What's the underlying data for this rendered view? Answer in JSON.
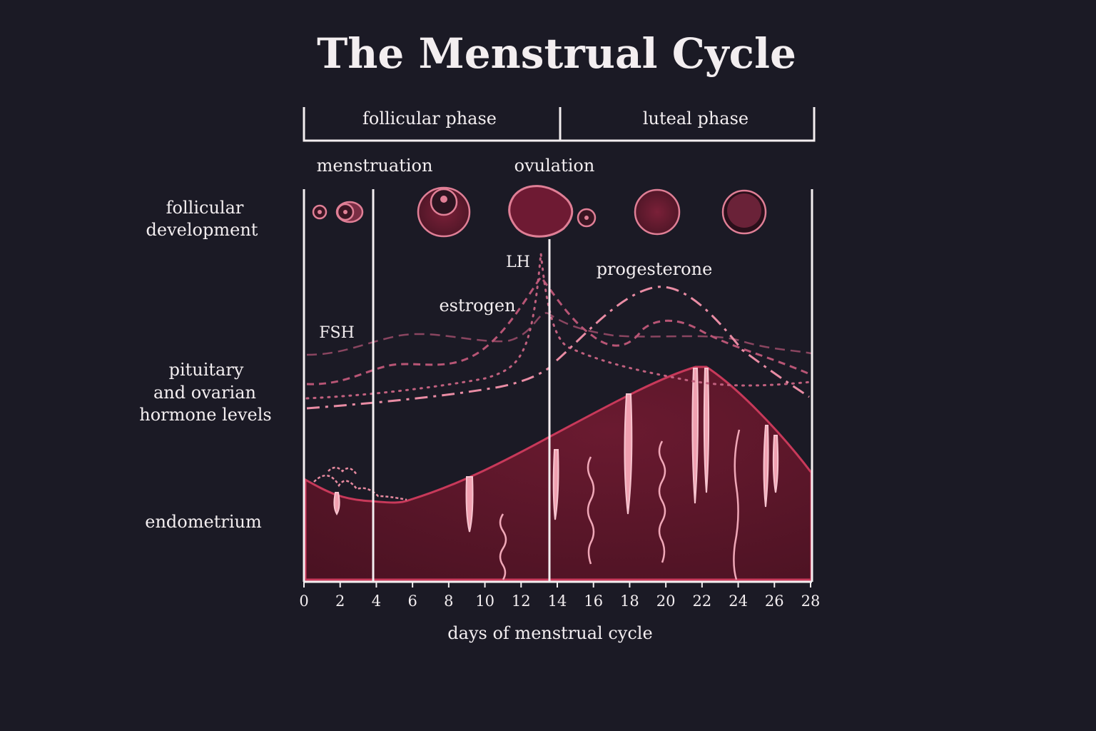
{
  "title": "The Menstrual Cycle",
  "phases": {
    "follicular": "follicular phase",
    "luteal": "luteal phase"
  },
  "events": {
    "menstruation": "menstruation",
    "ovulation": "ovulation"
  },
  "row_labels": {
    "follicular_line1": "follicular",
    "follicular_line2": "development",
    "hormone_line1": "pituitary",
    "hormone_line2": "and ovarian",
    "hormone_line3": "hormone levels",
    "endometrium": "endometrium"
  },
  "hormones": {
    "lh": "LH",
    "fsh": "FSH",
    "estrogen": "estrogen",
    "progesterone": "progesterone"
  },
  "x_axis": {
    "label": "days of menstrual cycle",
    "ticks": [
      0,
      2,
      4,
      6,
      8,
      10,
      12,
      14,
      16,
      18,
      20,
      22,
      24,
      26,
      28
    ],
    "range": [
      0,
      28
    ]
  },
  "colors": {
    "background": "#1b1a25",
    "tissue": "#5a1729",
    "accent": "#e07f96",
    "line": "#f3eef0"
  }
}
